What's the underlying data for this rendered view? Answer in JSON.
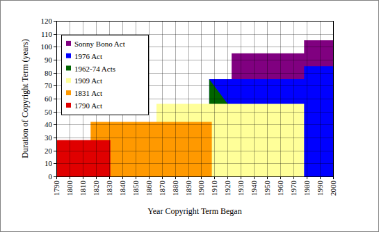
{
  "chart_data": {
    "type": "area",
    "xlabel": "Year Copyright Term Began",
    "ylabel": "Duration of Copyright Term (years)",
    "xlim": [
      1790,
      2000
    ],
    "xticks": [
      1790,
      1800,
      1810,
      1820,
      1830,
      1840,
      1850,
      1860,
      1870,
      1880,
      1890,
      1900,
      1910,
      1920,
      1930,
      1940,
      1950,
      1960,
      1970,
      1980,
      1990,
      2000
    ],
    "ylim": [
      0,
      120
    ],
    "yticks": [
      0,
      10,
      20,
      30,
      40,
      50,
      60,
      70,
      80,
      90,
      100,
      110,
      120
    ],
    "grid": true,
    "legend": "top-left",
    "series": [
      {
        "name": "Sonny Bono Act",
        "color": "#800080",
        "x": [
          1923,
          1978,
          1978,
          2000
        ],
        "values": [
          95,
          95,
          105,
          105
        ]
      },
      {
        "name": "1976 Act",
        "color": "#0000ff",
        "x": [
          1906,
          1978,
          1978,
          2000
        ],
        "values": [
          75,
          75,
          85,
          85
        ]
      },
      {
        "name": "1962-74 Acts",
        "color": "#006400",
        "x": [
          1906,
          1920
        ],
        "values": [
          75,
          56
        ]
      },
      {
        "name": "1909 Act",
        "color": "#ffff99",
        "x": [
          1866,
          1978
        ],
        "values": [
          56,
          56
        ]
      },
      {
        "name": "1831 Act",
        "color": "#ff9900",
        "x": [
          1816,
          1908
        ],
        "values": [
          42,
          42
        ]
      },
      {
        "name": "1790 Act",
        "color": "#e00000",
        "x": [
          1790,
          1831
        ],
        "values": [
          28,
          28
        ]
      }
    ]
  }
}
